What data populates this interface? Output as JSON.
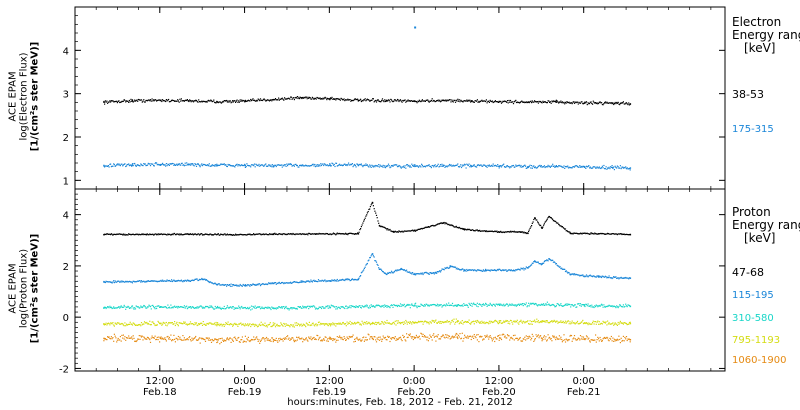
{
  "footer": "hours:minutes, Feb. 18, 2012 - Feb. 21, 2012",
  "chart_data": [
    {
      "type": "scatter",
      "panel": "electron",
      "ylabel": [
        "ACE EPAM",
        "log(Electron Flux)",
        "[1/(cm²s ster MeV)]"
      ],
      "ylim": [
        0.8,
        5.0
      ],
      "yticks": [
        1,
        2,
        3,
        4
      ],
      "xlim": [
        0,
        92
      ],
      "xticks": [
        12,
        24,
        36,
        48,
        60,
        72
      ],
      "xtick_time": [
        "12:00",
        "0:00",
        "12:00",
        "0:00",
        "12:00",
        "0:00"
      ],
      "xtick_date": [
        "Feb.18",
        "Feb.19",
        "Feb.19",
        "Feb.20",
        "Feb.20",
        "Feb.21"
      ],
      "x_unit": "hours from Feb. 18, 2012 00:00",
      "legend_title": [
        "Electron",
        "Energy range",
        "[keV]"
      ],
      "series": [
        {
          "name": "38-53",
          "color": "#000000",
          "x": [
            4,
            8,
            12,
            16,
            20,
            24,
            28,
            32,
            36,
            40,
            44,
            48,
            52,
            56,
            60,
            64,
            68,
            72,
            76,
            78.5
          ],
          "y": [
            2.82,
            2.85,
            2.86,
            2.85,
            2.83,
            2.84,
            2.88,
            2.92,
            2.9,
            2.86,
            2.85,
            2.84,
            2.86,
            2.84,
            2.83,
            2.82,
            2.82,
            2.8,
            2.8,
            2.78
          ],
          "jitter": 0.05
        },
        {
          "name": "175-315",
          "color": "#1a86d8",
          "x": [
            4,
            8,
            12,
            16,
            20,
            24,
            28,
            32,
            36,
            40,
            44,
            48,
            52,
            56,
            60,
            64,
            68,
            72,
            76,
            78.5
          ],
          "y": [
            1.35,
            1.37,
            1.38,
            1.38,
            1.36,
            1.36,
            1.35,
            1.36,
            1.37,
            1.36,
            1.34,
            1.34,
            1.35,
            1.35,
            1.34,
            1.33,
            1.34,
            1.32,
            1.31,
            1.3
          ],
          "jitter": 0.06
        }
      ],
      "outliers": [
        {
          "x": 48,
          "y": 4.55,
          "color": "#1a86d8"
        }
      ]
    },
    {
      "type": "scatter",
      "panel": "proton",
      "ylabel": [
        "ACE EPAM",
        "log(Proton Flux)",
        "[1/(cm²s ster MeV)]"
      ],
      "ylim": [
        -2.1,
        5.0
      ],
      "yticks": [
        -2,
        0,
        2,
        4
      ],
      "xlim": [
        0,
        92
      ],
      "xticks": [
        12,
        24,
        36,
        48,
        60,
        72
      ],
      "xtick_time": [
        "12:00",
        "0:00",
        "12:00",
        "0:00",
        "12:00",
        "0:00"
      ],
      "xtick_date": [
        "Feb.18",
        "Feb.19",
        "Feb.19",
        "Feb.20",
        "Feb.20",
        "Feb.21"
      ],
      "x_unit": "hours from Feb. 18, 2012 00:00",
      "legend_title": [
        "Proton",
        "Energy range",
        "[keV]"
      ],
      "series": [
        {
          "name": "47-68",
          "color": "#000000",
          "x": [
            4,
            10,
            16,
            22,
            28,
            34,
            40,
            42,
            43,
            45,
            48,
            52,
            55,
            57,
            60,
            63,
            64,
            65,
            66,
            67,
            70,
            74,
            78.5
          ],
          "y": [
            3.25,
            3.25,
            3.26,
            3.24,
            3.26,
            3.27,
            3.28,
            4.5,
            3.6,
            3.35,
            3.4,
            3.7,
            3.45,
            3.4,
            3.35,
            3.35,
            3.3,
            3.9,
            3.5,
            3.95,
            3.3,
            3.28,
            3.25
          ],
          "jitter": 0.04
        },
        {
          "name": "115-195",
          "color": "#1a86d8",
          "x": [
            4,
            10,
            16,
            18,
            20,
            24,
            28,
            32,
            36,
            40,
            42,
            43,
            44,
            46,
            48,
            51,
            53,
            55,
            58,
            62,
            64,
            65,
            66,
            67,
            70,
            74,
            78.5
          ],
          "y": [
            1.4,
            1.42,
            1.45,
            1.5,
            1.3,
            1.25,
            1.35,
            1.4,
            1.45,
            1.5,
            2.5,
            1.9,
            1.7,
            1.9,
            1.7,
            1.75,
            2.0,
            1.85,
            1.85,
            1.85,
            1.95,
            2.2,
            2.1,
            2.3,
            1.7,
            1.6,
            1.55
          ],
          "jitter": 0.06
        },
        {
          "name": "310-580",
          "color": "#19d6c8",
          "x": [
            4,
            12,
            20,
            28,
            36,
            42,
            48,
            54,
            60,
            66,
            72,
            78.5
          ],
          "y": [
            0.4,
            0.42,
            0.4,
            0.38,
            0.4,
            0.45,
            0.48,
            0.5,
            0.5,
            0.52,
            0.48,
            0.45
          ],
          "jitter": 0.1
        },
        {
          "name": "795-1193",
          "color": "#d4dc12",
          "x": [
            4,
            12,
            20,
            28,
            36,
            42,
            48,
            54,
            60,
            66,
            72,
            78.5
          ],
          "y": [
            -0.25,
            -0.22,
            -0.25,
            -0.28,
            -0.25,
            -0.22,
            -0.18,
            -0.15,
            -0.18,
            -0.15,
            -0.2,
            -0.22
          ],
          "jitter": 0.12
        },
        {
          "name": "1060-1900",
          "color": "#e58a12",
          "x": [
            4,
            12,
            20,
            28,
            36,
            42,
            48,
            54,
            60,
            66,
            72,
            78.5
          ],
          "y": [
            -0.8,
            -0.8,
            -0.85,
            -0.85,
            -0.82,
            -0.8,
            -0.78,
            -0.75,
            -0.78,
            -0.8,
            -0.82,
            -0.85
          ],
          "jitter": 0.2
        }
      ]
    }
  ]
}
